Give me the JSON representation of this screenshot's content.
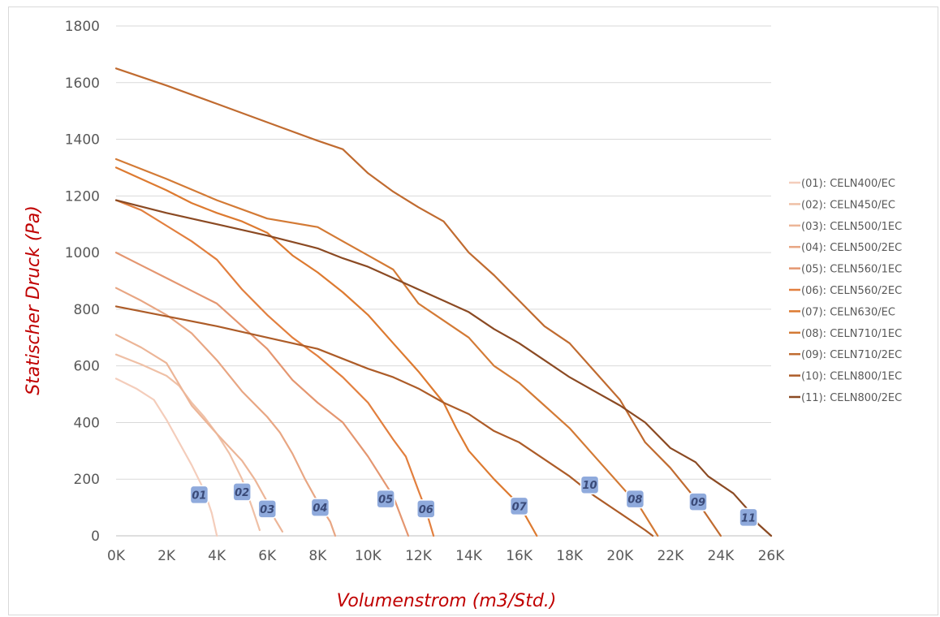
{
  "chart_data": {
    "type": "line",
    "xlabel": "Volumenstrom (m3/Std.)",
    "ylabel": "Statischer Druck (Pa)",
    "xlim": [
      0,
      26000
    ],
    "ylim": [
      0,
      1800
    ],
    "x_ticks": [
      "0K",
      "2K",
      "4K",
      "6K",
      "8K",
      "10K",
      "12K",
      "14K",
      "16K",
      "18K",
      "20K",
      "22K",
      "24K",
      "26K"
    ],
    "y_ticks": [
      "0",
      "200",
      "400",
      "600",
      "800",
      "1000",
      "1200",
      "1400",
      "1600",
      "1800"
    ],
    "grid": "horizontal",
    "legend_position": "right",
    "series": [
      {
        "name": "(01): CELN400/EC",
        "tag": "01",
        "color": "#f4cdbb",
        "tag_at": [
          3300,
          145
        ],
        "points": [
          [
            0,
            555
          ],
          [
            800,
            520
          ],
          [
            1500,
            480
          ],
          [
            2000,
            410
          ],
          [
            2500,
            330
          ],
          [
            3000,
            250
          ],
          [
            3500,
            160
          ],
          [
            3800,
            80
          ],
          [
            4000,
            0
          ]
        ]
      },
      {
        "name": "(02): CELN450/EC",
        "tag": "02",
        "color": "#efc0a6",
        "tag_at": [
          5000,
          155
        ],
        "points": [
          [
            0,
            640
          ],
          [
            1000,
            605
          ],
          [
            2000,
            565
          ],
          [
            2500,
            530
          ],
          [
            3000,
            470
          ],
          [
            3500,
            420
          ],
          [
            4000,
            360
          ],
          [
            4500,
            290
          ],
          [
            5000,
            200
          ],
          [
            5400,
            100
          ],
          [
            5700,
            20
          ]
        ]
      },
      {
        "name": "(03): CELN500/1EC",
        "tag": "03",
        "color": "#ecb597",
        "tag_at": [
          6000,
          95
        ],
        "points": [
          [
            0,
            710
          ],
          [
            1000,
            665
          ],
          [
            2000,
            610
          ],
          [
            2500,
            535
          ],
          [
            3000,
            460
          ],
          [
            4000,
            360
          ],
          [
            5000,
            265
          ],
          [
            5500,
            200
          ],
          [
            6000,
            120
          ],
          [
            6300,
            60
          ],
          [
            6600,
            15
          ]
        ]
      },
      {
        "name": "(04): CELN500/2EC",
        "tag": "04",
        "color": "#e8a683",
        "tag_at": [
          8100,
          100
        ],
        "points": [
          [
            0,
            875
          ],
          [
            1000,
            830
          ],
          [
            2000,
            780
          ],
          [
            3000,
            715
          ],
          [
            4000,
            620
          ],
          [
            5000,
            510
          ],
          [
            6000,
            420
          ],
          [
            6500,
            365
          ],
          [
            7000,
            290
          ],
          [
            7500,
            200
          ],
          [
            8000,
            120
          ],
          [
            8500,
            50
          ],
          [
            8700,
            0
          ]
        ]
      },
      {
        "name": "(05): CELN560/1EC",
        "tag": "05",
        "color": "#e49670",
        "tag_at": [
          10700,
          130
        ],
        "points": [
          [
            0,
            1000
          ],
          [
            1000,
            955
          ],
          [
            2000,
            910
          ],
          [
            3000,
            865
          ],
          [
            4000,
            820
          ],
          [
            5000,
            740
          ],
          [
            6000,
            660
          ],
          [
            7000,
            550
          ],
          [
            8000,
            470
          ],
          [
            9000,
            400
          ],
          [
            10000,
            280
          ],
          [
            10500,
            210
          ],
          [
            11000,
            140
          ],
          [
            11600,
            0
          ]
        ]
      },
      {
        "name": "(06): CELN560/2EC",
        "tag": "06",
        "color": "#e27f3e",
        "tag_at": [
          12300,
          95
        ],
        "points": [
          [
            0,
            1185
          ],
          [
            1000,
            1150
          ],
          [
            2000,
            1095
          ],
          [
            3000,
            1040
          ],
          [
            4000,
            975
          ],
          [
            5000,
            870
          ],
          [
            6000,
            780
          ],
          [
            7000,
            700
          ],
          [
            8000,
            635
          ],
          [
            9000,
            560
          ],
          [
            10000,
            470
          ],
          [
            11000,
            340
          ],
          [
            11500,
            280
          ],
          [
            12000,
            160
          ],
          [
            12300,
            90
          ],
          [
            12600,
            0
          ]
        ]
      },
      {
        "name": "(07): CELN630/EC",
        "tag": "07",
        "color": "#dd7a30",
        "tag_at": [
          16000,
          105
        ],
        "points": [
          [
            0,
            1300
          ],
          [
            1000,
            1260
          ],
          [
            2000,
            1220
          ],
          [
            3000,
            1175
          ],
          [
            4000,
            1140
          ],
          [
            5000,
            1110
          ],
          [
            6000,
            1070
          ],
          [
            7000,
            990
          ],
          [
            8000,
            930
          ],
          [
            9000,
            860
          ],
          [
            10000,
            780
          ],
          [
            11000,
            680
          ],
          [
            12000,
            580
          ],
          [
            13000,
            470
          ],
          [
            13500,
            380
          ],
          [
            14000,
            300
          ],
          [
            15000,
            200
          ],
          [
            16000,
            110
          ],
          [
            16700,
            0
          ]
        ]
      },
      {
        "name": "(08): CELN710/1EC",
        "tag": "08",
        "color": "#d37a35",
        "tag_at": [
          20600,
          130
        ],
        "points": [
          [
            0,
            1330
          ],
          [
            2000,
            1260
          ],
          [
            4000,
            1185
          ],
          [
            6000,
            1120
          ],
          [
            8000,
            1090
          ],
          [
            9000,
            1040
          ],
          [
            10000,
            990
          ],
          [
            11000,
            940
          ],
          [
            12000,
            820
          ],
          [
            13000,
            760
          ],
          [
            14000,
            700
          ],
          [
            15000,
            600
          ],
          [
            16000,
            540
          ],
          [
            17000,
            460
          ],
          [
            18000,
            380
          ],
          [
            19000,
            280
          ],
          [
            20000,
            180
          ],
          [
            20800,
            100
          ],
          [
            21500,
            0
          ]
        ]
      },
      {
        "name": "(09): CELN710/2EC",
        "tag": "09",
        "color": "#c06b30",
        "tag_at": [
          23100,
          120
        ],
        "points": [
          [
            0,
            1650
          ],
          [
            2000,
            1590
          ],
          [
            4000,
            1525
          ],
          [
            6000,
            1460
          ],
          [
            8000,
            1395
          ],
          [
            9000,
            1365
          ],
          [
            10000,
            1280
          ],
          [
            11000,
            1215
          ],
          [
            12000,
            1160
          ],
          [
            13000,
            1110
          ],
          [
            14000,
            1000
          ],
          [
            15000,
            920
          ],
          [
            16000,
            830
          ],
          [
            17000,
            740
          ],
          [
            18000,
            680
          ],
          [
            19000,
            580
          ],
          [
            20000,
            480
          ],
          [
            21000,
            330
          ],
          [
            22000,
            240
          ],
          [
            23000,
            130
          ],
          [
            24000,
            0
          ]
        ]
      },
      {
        "name": "(10): CELN800/1EC",
        "tag": "10",
        "color": "#ad5c28",
        "tag_at": [
          18800,
          180
        ],
        "points": [
          [
            0,
            810
          ],
          [
            2000,
            775
          ],
          [
            4000,
            740
          ],
          [
            6000,
            700
          ],
          [
            8000,
            660
          ],
          [
            10000,
            590
          ],
          [
            11000,
            560
          ],
          [
            12000,
            520
          ],
          [
            13000,
            470
          ],
          [
            14000,
            430
          ],
          [
            15000,
            370
          ],
          [
            16000,
            330
          ],
          [
            17000,
            270
          ],
          [
            18000,
            210
          ],
          [
            19000,
            140
          ],
          [
            20000,
            80
          ],
          [
            21000,
            20
          ],
          [
            21300,
            0
          ]
        ]
      },
      {
        "name": "(11): CELN800/2EC",
        "tag": "11",
        "color": "#8b4a23",
        "tag_at": [
          25100,
          65
        ],
        "points": [
          [
            0,
            1185
          ],
          [
            2000,
            1140
          ],
          [
            4000,
            1100
          ],
          [
            6000,
            1060
          ],
          [
            8000,
            1015
          ],
          [
            9000,
            980
          ],
          [
            10000,
            950
          ],
          [
            11000,
            910
          ],
          [
            12000,
            870
          ],
          [
            13000,
            830
          ],
          [
            14000,
            790
          ],
          [
            15000,
            730
          ],
          [
            16000,
            680
          ],
          [
            17000,
            620
          ],
          [
            18000,
            560
          ],
          [
            19000,
            510
          ],
          [
            20000,
            460
          ],
          [
            21000,
            400
          ],
          [
            22000,
            310
          ],
          [
            23000,
            260
          ],
          [
            23500,
            210
          ],
          [
            24500,
            150
          ],
          [
            25000,
            100
          ],
          [
            25500,
            40
          ],
          [
            26000,
            0
          ]
        ]
      }
    ]
  }
}
